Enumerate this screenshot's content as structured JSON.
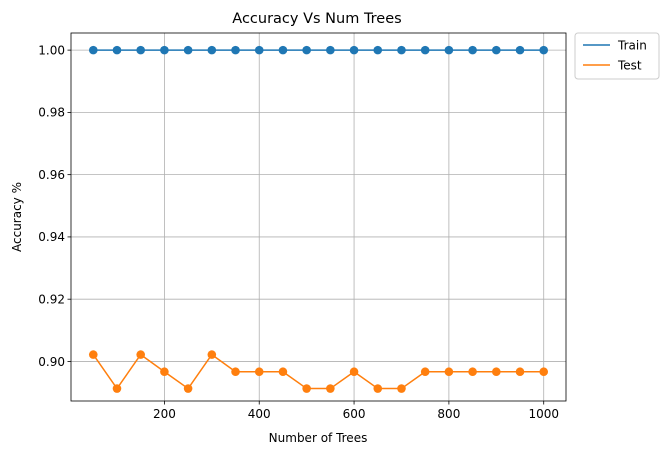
{
  "chart_data": {
    "type": "line",
    "title": "Accuracy Vs Num Trees",
    "xlabel": "Number of Trees",
    "ylabel": "Accuracy %",
    "xlim": [
      3,
      1047
    ],
    "ylim": [
      0.8873,
      1.0055
    ],
    "xticks": [
      200,
      400,
      600,
      800,
      1000
    ],
    "yticks": [
      0.9,
      0.92,
      0.94,
      0.96,
      0.98,
      1.0
    ],
    "ytick_labels": [
      "0.90",
      "0.92",
      "0.94",
      "0.96",
      "0.98",
      "1.00"
    ],
    "grid": true,
    "legend_position": "outside-top-right",
    "x": [
      50,
      100,
      150,
      200,
      250,
      300,
      350,
      400,
      450,
      500,
      550,
      600,
      650,
      700,
      750,
      800,
      850,
      900,
      950,
      1000
    ],
    "series": [
      {
        "name": "Train",
        "color": "#1f77b4",
        "values": [
          1.0,
          1.0,
          1.0,
          1.0,
          1.0,
          1.0,
          1.0,
          1.0,
          1.0,
          1.0,
          1.0,
          1.0,
          1.0,
          1.0,
          1.0,
          1.0,
          1.0,
          1.0,
          1.0,
          1.0
        ]
      },
      {
        "name": "Test",
        "color": "#ff7f0e",
        "values": [
          0.9022,
          0.8913,
          0.9022,
          0.8967,
          0.8913,
          0.9022,
          0.8967,
          0.8967,
          0.8967,
          0.8913,
          0.8913,
          0.8967,
          0.8913,
          0.8913,
          0.8967,
          0.8967,
          0.8967,
          0.8967,
          0.8967,
          0.8967
        ]
      }
    ]
  }
}
